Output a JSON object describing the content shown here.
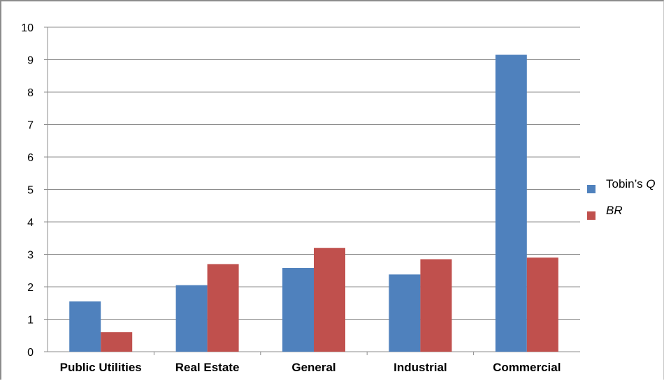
{
  "chart_data": {
    "type": "bar",
    "categories": [
      "Public Utilities",
      "Real Estate",
      "General",
      "Industrial",
      "Commercial"
    ],
    "series": [
      {
        "name": "Tobin’s Q",
        "name_prefix": "Tobin’s ",
        "name_italic": "Q",
        "color": "#4f81bd",
        "values": [
          1.55,
          2.05,
          2.58,
          2.38,
          9.15
        ]
      },
      {
        "name": "BR",
        "name_prefix": "",
        "name_italic": "BR",
        "color": "#c0504d",
        "values": [
          0.6,
          2.7,
          3.2,
          2.85,
          2.9
        ]
      }
    ],
    "ylim": [
      0,
      10
    ],
    "yticks": [
      "0",
      "1",
      "2",
      "3",
      "4",
      "5",
      "6",
      "7",
      "8",
      "9",
      "10"
    ],
    "grid": true,
    "legend": "right"
  }
}
